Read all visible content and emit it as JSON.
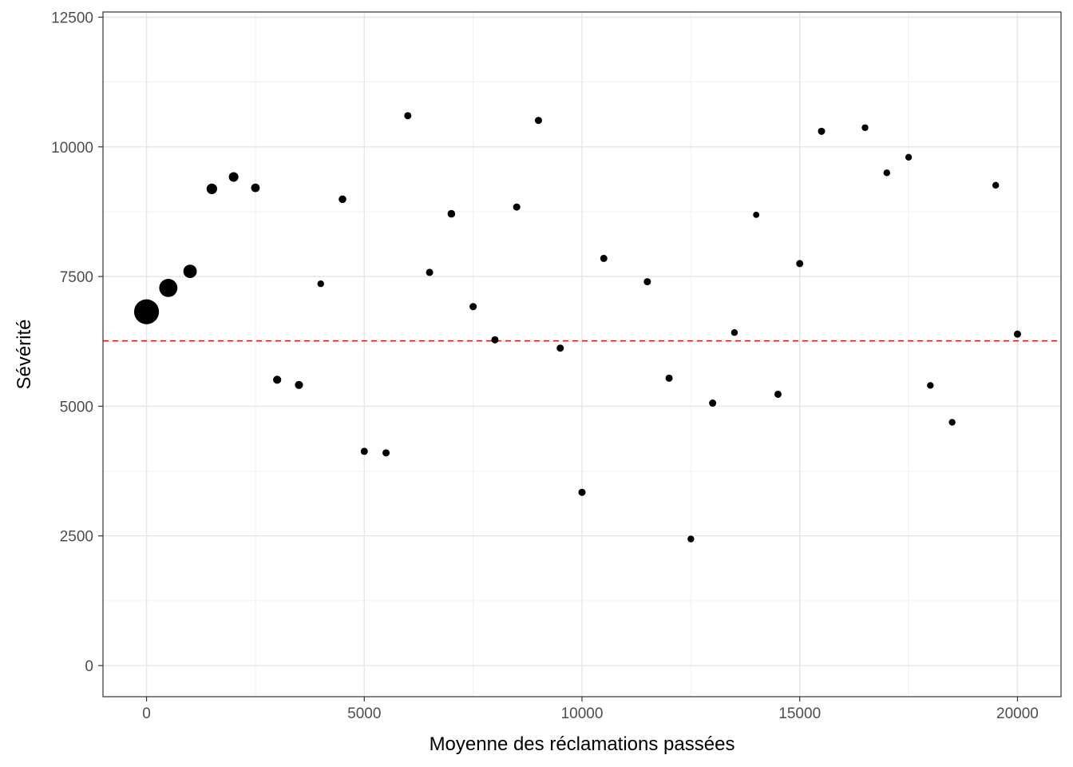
{
  "chart_data": {
    "type": "scatter",
    "xlabel": "Moyenne des réclamations passées",
    "ylabel": "Sévérité",
    "xlim": [
      -1000,
      21000
    ],
    "ylim": [
      -600,
      12600
    ],
    "x_ticks": [
      0,
      5000,
      10000,
      15000,
      20000
    ],
    "y_ticks": [
      0,
      2500,
      5000,
      7500,
      10000,
      12500
    ],
    "x_tick_labels": [
      "0",
      "5000",
      "10000",
      "15000",
      "20000"
    ],
    "y_tick_labels": [
      "0",
      "2500",
      "5000",
      "7500",
      "10000",
      "12500"
    ],
    "grid": true,
    "reference_line": {
      "y": 6260,
      "color": "#ff0000",
      "style": "dashed"
    },
    "point_color": "#000000",
    "points": [
      {
        "x": 0,
        "y": 6820,
        "size": 5.2
      },
      {
        "x": 500,
        "y": 7280,
        "size": 3.8
      },
      {
        "x": 1000,
        "y": 7600,
        "size": 2.8
      },
      {
        "x": 1500,
        "y": 9190,
        "size": 2.2
      },
      {
        "x": 2000,
        "y": 9420,
        "size": 2.0
      },
      {
        "x": 2500,
        "y": 9210,
        "size": 1.8
      },
      {
        "x": 3000,
        "y": 5510,
        "size": 1.7
      },
      {
        "x": 3500,
        "y": 5410,
        "size": 1.7
      },
      {
        "x": 4000,
        "y": 7360,
        "size": 1.4
      },
      {
        "x": 4500,
        "y": 8990,
        "size": 1.6
      },
      {
        "x": 5000,
        "y": 4130,
        "size": 1.5
      },
      {
        "x": 5500,
        "y": 4100,
        "size": 1.5
      },
      {
        "x": 6000,
        "y": 10600,
        "size": 1.5
      },
      {
        "x": 6500,
        "y": 7580,
        "size": 1.5
      },
      {
        "x": 7000,
        "y": 8710,
        "size": 1.6
      },
      {
        "x": 7500,
        "y": 6920,
        "size": 1.5
      },
      {
        "x": 8000,
        "y": 6280,
        "size": 1.5
      },
      {
        "x": 8500,
        "y": 8840,
        "size": 1.5
      },
      {
        "x": 9000,
        "y": 10510,
        "size": 1.5
      },
      {
        "x": 9500,
        "y": 6120,
        "size": 1.5
      },
      {
        "x": 10000,
        "y": 3340,
        "size": 1.5
      },
      {
        "x": 10500,
        "y": 7850,
        "size": 1.5
      },
      {
        "x": 11500,
        "y": 7400,
        "size": 1.5
      },
      {
        "x": 12000,
        "y": 5540,
        "size": 1.5
      },
      {
        "x": 12500,
        "y": 2440,
        "size": 1.4
      },
      {
        "x": 13000,
        "y": 5060,
        "size": 1.5
      },
      {
        "x": 13500,
        "y": 6420,
        "size": 1.4
      },
      {
        "x": 14000,
        "y": 8690,
        "size": 1.3
      },
      {
        "x": 14500,
        "y": 5230,
        "size": 1.5
      },
      {
        "x": 15000,
        "y": 7750,
        "size": 1.5
      },
      {
        "x": 15500,
        "y": 10300,
        "size": 1.5
      },
      {
        "x": 16500,
        "y": 10370,
        "size": 1.4
      },
      {
        "x": 17000,
        "y": 9500,
        "size": 1.4
      },
      {
        "x": 17500,
        "y": 9800,
        "size": 1.4
      },
      {
        "x": 18000,
        "y": 5400,
        "size": 1.4
      },
      {
        "x": 18500,
        "y": 4690,
        "size": 1.4
      },
      {
        "x": 19500,
        "y": 9260,
        "size": 1.4
      },
      {
        "x": 20000,
        "y": 6390,
        "size": 1.5
      }
    ]
  }
}
